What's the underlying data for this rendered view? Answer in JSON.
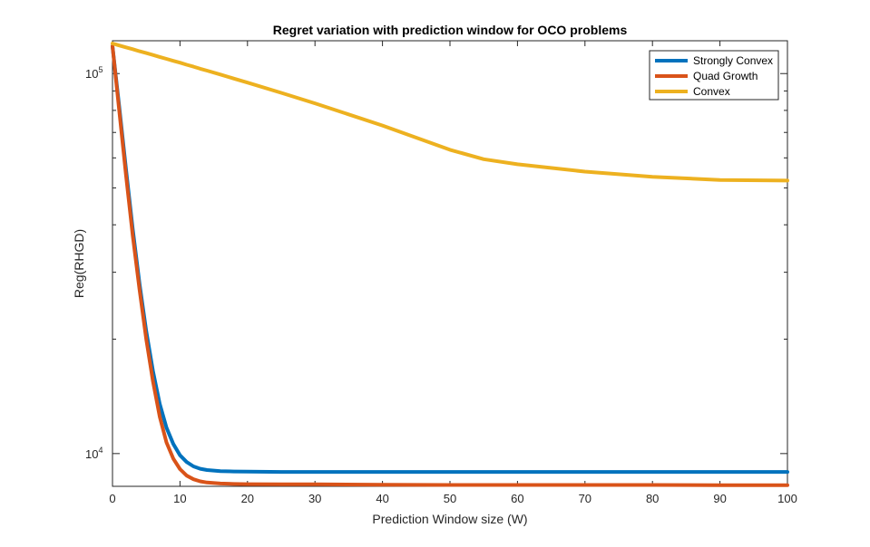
{
  "chart_data": {
    "type": "line",
    "title": "Regret variation with prediction window for OCO problems",
    "xlabel": "Prediction Window size (W)",
    "ylabel": "Reg(RHGD)",
    "xlim": [
      0,
      100
    ],
    "ylim": [
      8200,
      122000
    ],
    "yscale": "log",
    "grid": false,
    "legend_position": "top-right",
    "x_ticks": [
      "0",
      "10",
      "20",
      "30",
      "40",
      "50",
      "60",
      "70",
      "80",
      "90",
      "100"
    ],
    "y_ticks": [
      {
        "value": 10000,
        "base": "10",
        "exp": "4"
      },
      {
        "value": 100000,
        "base": "10",
        "exp": "5"
      }
    ],
    "x": [
      0,
      1,
      2,
      3,
      4,
      5,
      6,
      7,
      8,
      9,
      10,
      11,
      12,
      13,
      14,
      16,
      18,
      20,
      25,
      30,
      40,
      50,
      55,
      60,
      70,
      80,
      90,
      100
    ],
    "series": [
      {
        "name": "Strongly Convex",
        "color": "#0072BD",
        "values": [
          118000,
          82000,
          56000,
          39000,
          28000,
          21000,
          16500,
          13500,
          11700,
          10600,
          9900,
          9500,
          9250,
          9120,
          9050,
          8990,
          8970,
          8960,
          8950,
          8950,
          8950,
          8950,
          8950,
          8950,
          8950,
          8950,
          8950,
          8950
        ]
      },
      {
        "name": "Quad Growth",
        "color": "#D95319",
        "values": [
          118000,
          80000,
          54000,
          37500,
          27000,
          20000,
          15500,
          12500,
          10700,
          9700,
          9100,
          8750,
          8560,
          8450,
          8390,
          8340,
          8320,
          8310,
          8300,
          8300,
          8280,
          8270,
          8270,
          8270,
          8270,
          8270,
          8260,
          8260
        ]
      },
      {
        "name": "Convex",
        "color": "#EDB120",
        "values": [
          120000,
          118600,
          117200,
          115900,
          114500,
          113200,
          111900,
          110600,
          109300,
          108000,
          106800,
          105500,
          104300,
          103000,
          101800,
          99400,
          97000,
          94700,
          89000,
          83500,
          73000,
          63000,
          59500,
          57700,
          55200,
          53500,
          52500,
          52300
        ]
      }
    ]
  }
}
